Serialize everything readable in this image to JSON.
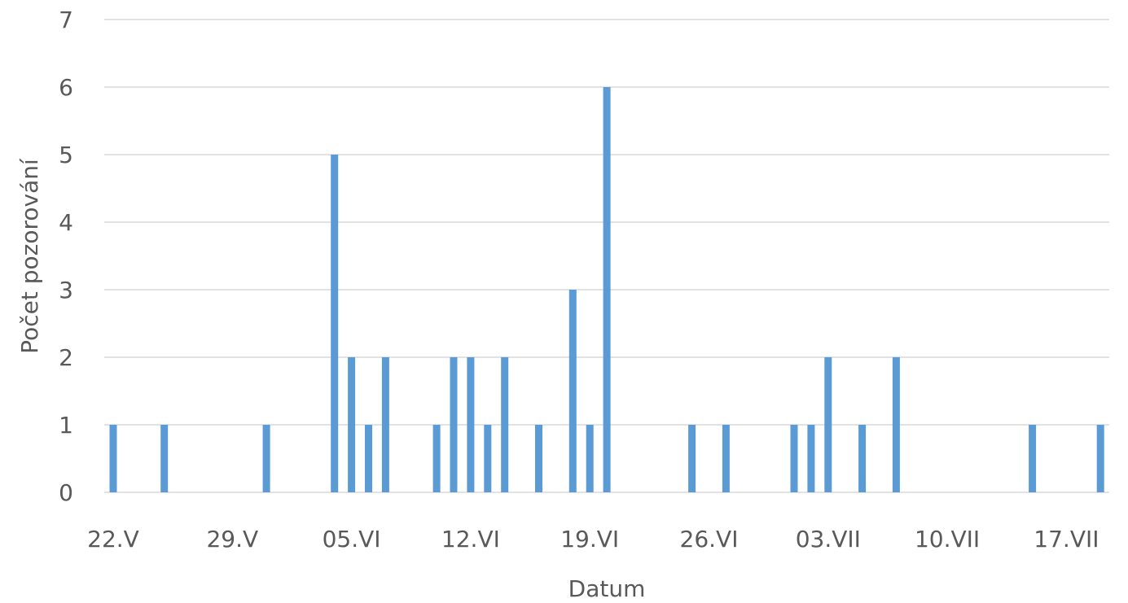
{
  "chart_data": {
    "type": "bar",
    "xlabel": "Datum",
    "ylabel": "Počet pozorování",
    "ylim": [
      0,
      7
    ],
    "y_ticks": [
      "0",
      "1",
      "2",
      "3",
      "4",
      "5",
      "6",
      "7"
    ],
    "x_range": [
      "22.V",
      "17.VII"
    ],
    "x_tick_labels": [
      "22.V",
      "29.V",
      "05.VI",
      "12.VI",
      "19.VI",
      "26.VI",
      "03.VII",
      "10.VII",
      "17.VII"
    ],
    "grid": true,
    "legend": "none",
    "color": "#5b9bd5",
    "series": [
      {
        "points": [
          {
            "date": "22.V",
            "value": 1
          },
          {
            "date": "25.V",
            "value": 1
          },
          {
            "date": "31.V",
            "value": 1
          },
          {
            "date": "04.VI",
            "value": 5
          },
          {
            "date": "05.VI",
            "value": 2
          },
          {
            "date": "06.VI",
            "value": 1
          },
          {
            "date": "07.VI",
            "value": 2
          },
          {
            "date": "10.VI",
            "value": 1
          },
          {
            "date": "11.VI",
            "value": 2
          },
          {
            "date": "12.VI",
            "value": 2
          },
          {
            "date": "13.VI",
            "value": 1
          },
          {
            "date": "14.VI",
            "value": 2
          },
          {
            "date": "16.VI",
            "value": 1
          },
          {
            "date": "18.VI",
            "value": 3
          },
          {
            "date": "19.VI",
            "value": 1
          },
          {
            "date": "20.VI",
            "value": 6
          },
          {
            "date": "25.VI",
            "value": 1
          },
          {
            "date": "27.VI",
            "value": 1
          },
          {
            "date": "01.VII",
            "value": 1
          },
          {
            "date": "02.VII",
            "value": 1
          },
          {
            "date": "03.VII",
            "value": 2
          },
          {
            "date": "05.VII",
            "value": 1
          },
          {
            "date": "07.VII",
            "value": 2
          },
          {
            "date": "15.VII",
            "value": 1
          },
          {
            "date": "19.VII",
            "value": 1
          }
        ]
      }
    ]
  }
}
